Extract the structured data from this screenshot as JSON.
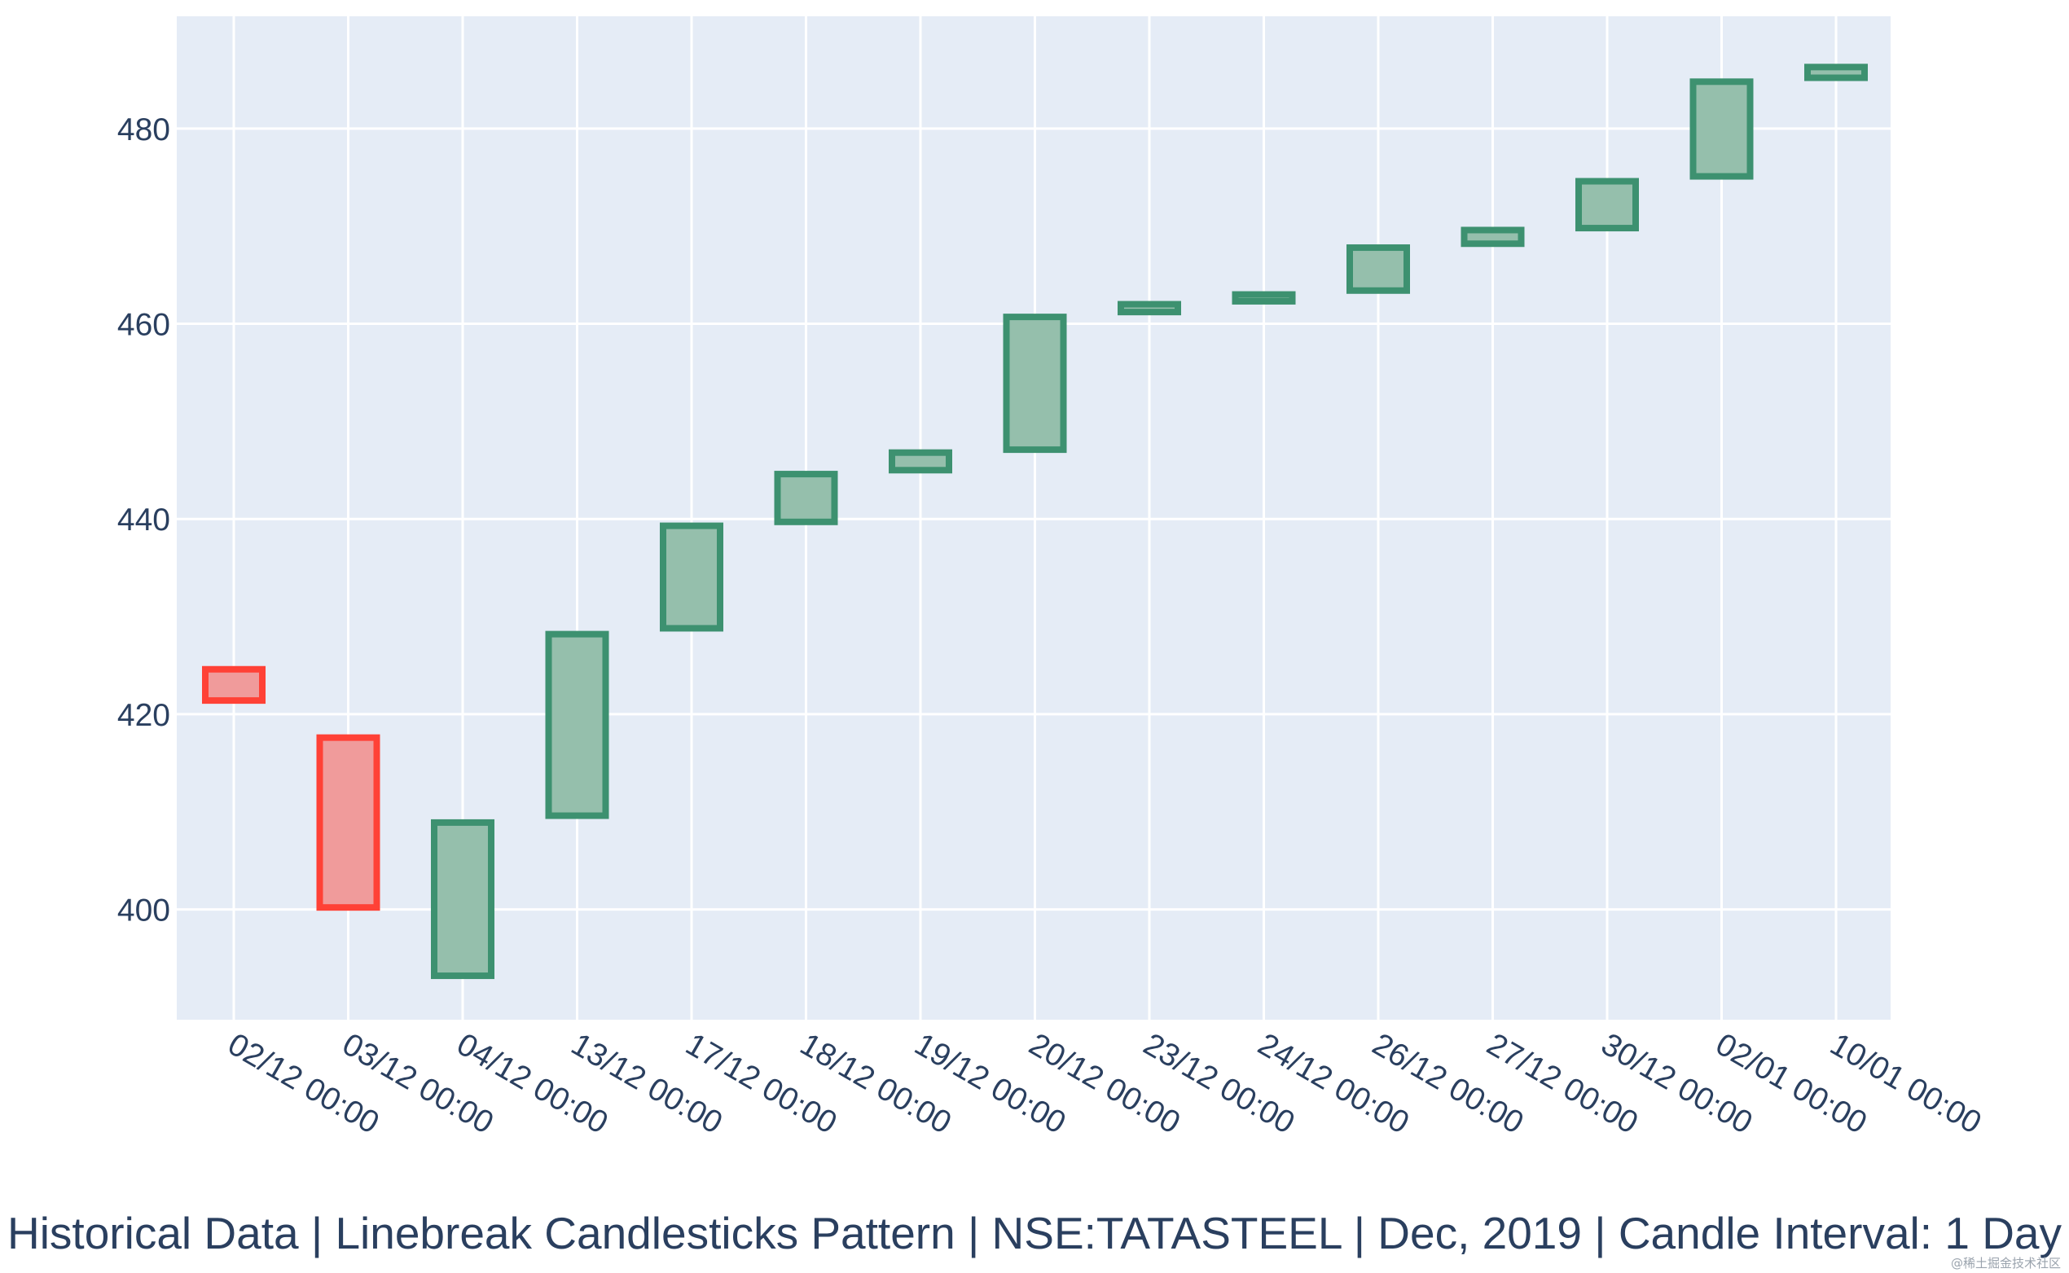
{
  "chart_data": {
    "type": "candlestick",
    "title": "Historical Data | Linebreak Candlesticks Pattern | NSE:TATASTEEL | Dec, 2019 | Candle Interval: 1 Day",
    "xlabel": "",
    "ylabel": "",
    "categories": [
      "02/12 00:00",
      "03/12 00:00",
      "04/12 00:00",
      "13/12 00:00",
      "17/12 00:00",
      "18/12 00:00",
      "19/12 00:00",
      "20/12 00:00",
      "23/12 00:00",
      "24/12 00:00",
      "26/12 00:00",
      "27/12 00:00",
      "30/12 00:00",
      "02/01 00:00",
      "10/01 00:00"
    ],
    "candles": [
      {
        "open": 424.6,
        "close": 421.4,
        "direction": "down"
      },
      {
        "open": 417.6,
        "close": 400.2,
        "direction": "down"
      },
      {
        "open": 393.2,
        "close": 408.9,
        "direction": "up"
      },
      {
        "open": 409.6,
        "close": 428.2,
        "direction": "up"
      },
      {
        "open": 428.8,
        "close": 439.3,
        "direction": "up"
      },
      {
        "open": 439.7,
        "close": 444.6,
        "direction": "up"
      },
      {
        "open": 445.0,
        "close": 446.8,
        "direction": "up"
      },
      {
        "open": 447.1,
        "close": 460.7,
        "direction": "up"
      },
      {
        "open": 461.2,
        "close": 462.0,
        "direction": "up"
      },
      {
        "open": 462.3,
        "close": 463.0,
        "direction": "up"
      },
      {
        "open": 463.4,
        "close": 467.8,
        "direction": "up"
      },
      {
        "open": 468.2,
        "close": 469.6,
        "direction": "up"
      },
      {
        "open": 469.8,
        "close": 474.6,
        "direction": "up"
      },
      {
        "open": 475.1,
        "close": 484.8,
        "direction": "up"
      },
      {
        "open": 485.2,
        "close": 486.3,
        "direction": "up"
      }
    ],
    "ylim": [
      388.7,
      491.5
    ],
    "yticks": [
      400,
      420,
      440,
      460,
      480
    ],
    "ytick_labels": [
      "400",
      "420",
      "440",
      "460",
      "480"
    ],
    "grid": true,
    "legend": "none",
    "colors": {
      "increasing_line": "#3d9170",
      "increasing_fill": "#95bfac",
      "decreasing_line": "#ff4136",
      "decreasing_fill": "#f09b9b",
      "plot_background": "#e5ecf6",
      "grid": "#ffffff",
      "text": "#2a3f5f"
    }
  },
  "watermark": "@稀土掘金技术社区"
}
